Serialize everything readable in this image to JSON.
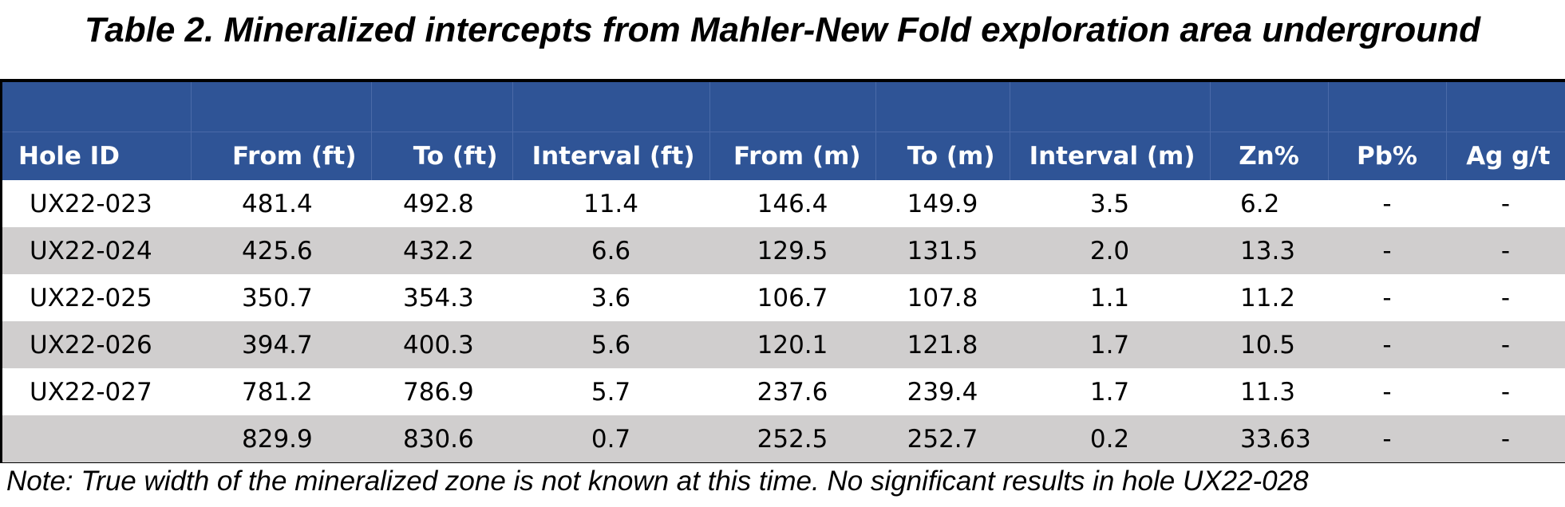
{
  "title": "Table 2. Mineralized intercepts from Mahler-New Fold exploration area underground",
  "table": {
    "columns": [
      "Hole ID",
      "From (ft)",
      "To (ft)",
      "Interval (ft)",
      "From (m)",
      "To (m)",
      "Interval (m)",
      "Zn%",
      "Pb%",
      "Ag g/t"
    ],
    "rows": [
      [
        "UX22-023",
        "481.4",
        "492.8",
        "11.4",
        "146.4",
        "149.9",
        "3.5",
        "6.2",
        "-",
        "-"
      ],
      [
        "UX22-024",
        "425.6",
        "432.2",
        "6.6",
        "129.5",
        "131.5",
        "2.0",
        "13.3",
        "-",
        "-"
      ],
      [
        "UX22-025",
        "350.7",
        "354.3",
        "3.6",
        "106.7",
        "107.8",
        "1.1",
        "11.2",
        "-",
        "-"
      ],
      [
        "UX22-026",
        "394.7",
        "400.3",
        "5.6",
        "120.1",
        "121.8",
        "1.7",
        "10.5",
        "-",
        "-"
      ],
      [
        "UX22-027",
        "781.2",
        "786.9",
        "5.7",
        "237.6",
        "239.4",
        "1.7",
        "11.3",
        "-",
        "-"
      ],
      [
        "",
        "829.9",
        "830.6",
        "0.7",
        "252.5",
        "252.7",
        "0.2",
        "33.63",
        "-",
        "-"
      ]
    ]
  },
  "note": "Note: True width of the mineralized zone is not known at this time. No significant results in hole UX22-028",
  "colors": {
    "header_bg": "#2f5496",
    "header_text": "#ffffff",
    "alt_row_bg": "#d0cece"
  }
}
